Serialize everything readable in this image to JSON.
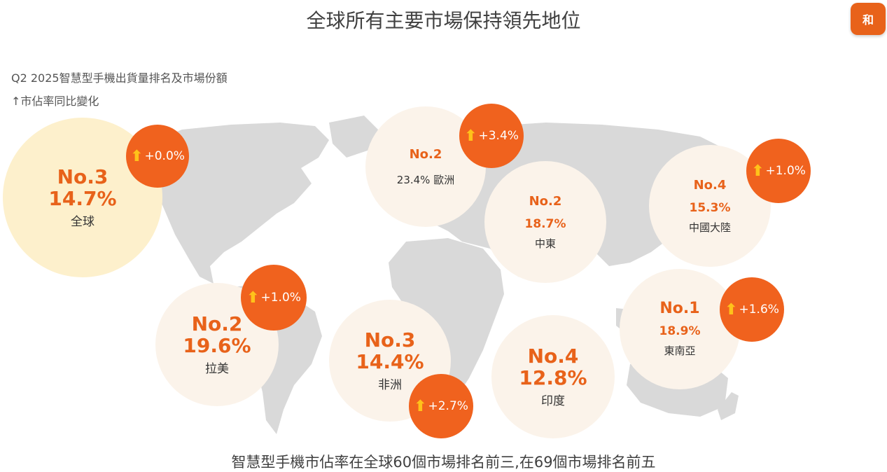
{
  "header": {
    "title": "全球所有主要市場保持領先地位",
    "badge": "和"
  },
  "subtitle": {
    "line1": "Q2 2025智慧型手機出貨量排名及市場份額",
    "line2": "↑市佔率同比變化"
  },
  "footer": "智慧型手機市佔率在全球60個市場排名前三,在69個市場排名前五",
  "arrow_glyph": "⬆",
  "markets": [
    {
      "key": "global",
      "rank": "No.3",
      "share": "14.7%",
      "region": "全球",
      "change": "+0.0%",
      "color": "#fdf0cc"
    },
    {
      "key": "europe",
      "rank": "No.2",
      "share": "23.4% 歐洲",
      "region": "",
      "change": "+3.4%",
      "color": "#fbf3ea"
    },
    {
      "key": "middle-east",
      "rank": "No.2",
      "share": "18.7%",
      "region": "中東",
      "change": "",
      "color": "#fbf3ea"
    },
    {
      "key": "china",
      "rank": "No.4",
      "share": "15.3%",
      "region": "中國大陸",
      "change": "+1.0%",
      "color": "#fbf3ea"
    },
    {
      "key": "latam",
      "rank": "No.2",
      "share": "19.6%",
      "region": "拉美",
      "change": "+1.0%",
      "color": "#fbf3ea"
    },
    {
      "key": "africa",
      "rank": "No.3",
      "share": "14.4%",
      "region": "非洲",
      "change": "+2.7%",
      "color": "#fbf3ea"
    },
    {
      "key": "india",
      "rank": "No.4",
      "share": "12.8%",
      "region": "印度",
      "change": "",
      "color": "#fbf3ea"
    },
    {
      "key": "sea",
      "rank": "No.1",
      "share": "18.9%",
      "region": "東南亞",
      "change": "+1.6%",
      "color": "#fbf3ea"
    }
  ],
  "colors": {
    "accent": "#e8621a",
    "change_bg": "#f0621e",
    "arrow": "#ffc21a",
    "map": "#d9d9d9"
  }
}
